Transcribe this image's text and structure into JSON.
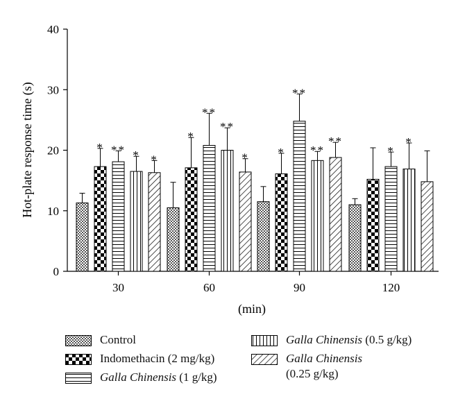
{
  "chart_data": {
    "type": "bar",
    "ylabel": "Hot-plate response time (s)",
    "xlabel": "(min)",
    "ylim": [
      0,
      40
    ],
    "yticks": [
      "0",
      "10",
      "20",
      "30",
      "40"
    ],
    "categories": [
      "30",
      "60",
      "90",
      "120"
    ],
    "series": [
      {
        "name": "Control",
        "pattern": "crosshatch",
        "values": [
          11.3,
          10.5,
          11.5,
          11.0
        ],
        "errors": [
          1.6,
          4.2,
          2.5,
          1.0
        ],
        "marks": [
          "",
          "",
          "",
          ""
        ]
      },
      {
        "name": "Indomethacin (2 mg/kg)",
        "pattern": "checker",
        "values": [
          17.3,
          17.1,
          16.1,
          15.2
        ],
        "errors": [
          3.0,
          5.0,
          3.4,
          5.2
        ],
        "marks": [
          "*",
          "*",
          "*",
          ""
        ]
      },
      {
        "name": "Galla Chinensis (1 g/kg)",
        "pattern": "hlines",
        "values": [
          18.1,
          20.8,
          24.8,
          17.3
        ],
        "errors": [
          1.8,
          5.3,
          4.5,
          2.4
        ],
        "marks": [
          "**",
          "**",
          "**",
          "*"
        ]
      },
      {
        "name": "Galla Chinensis (0.5 g/kg)",
        "pattern": "vlines",
        "values": [
          16.5,
          20.0,
          18.3,
          16.9
        ],
        "errors": [
          2.5,
          3.7,
          1.5,
          4.3
        ],
        "marks": [
          "*",
          "**",
          "**",
          "*"
        ]
      },
      {
        "name": "Galla Chinensis (0.25 g/kg)",
        "pattern": "diagonal",
        "values": [
          16.3,
          16.4,
          18.8,
          14.8
        ],
        "errors": [
          2.0,
          2.2,
          2.5,
          5.1
        ],
        "marks": [
          "*",
          "*",
          "**",
          ""
        ]
      }
    ],
    "legend": {
      "control": "Control",
      "indomethacin": "Indomethacin (2 mg/kg)",
      "galla_name": "Galla Chinensis",
      "dose_1": "(1 g/kg)",
      "dose_05": "(0.5 g/kg)",
      "dose_025": "(0.25 g/kg)"
    }
  }
}
